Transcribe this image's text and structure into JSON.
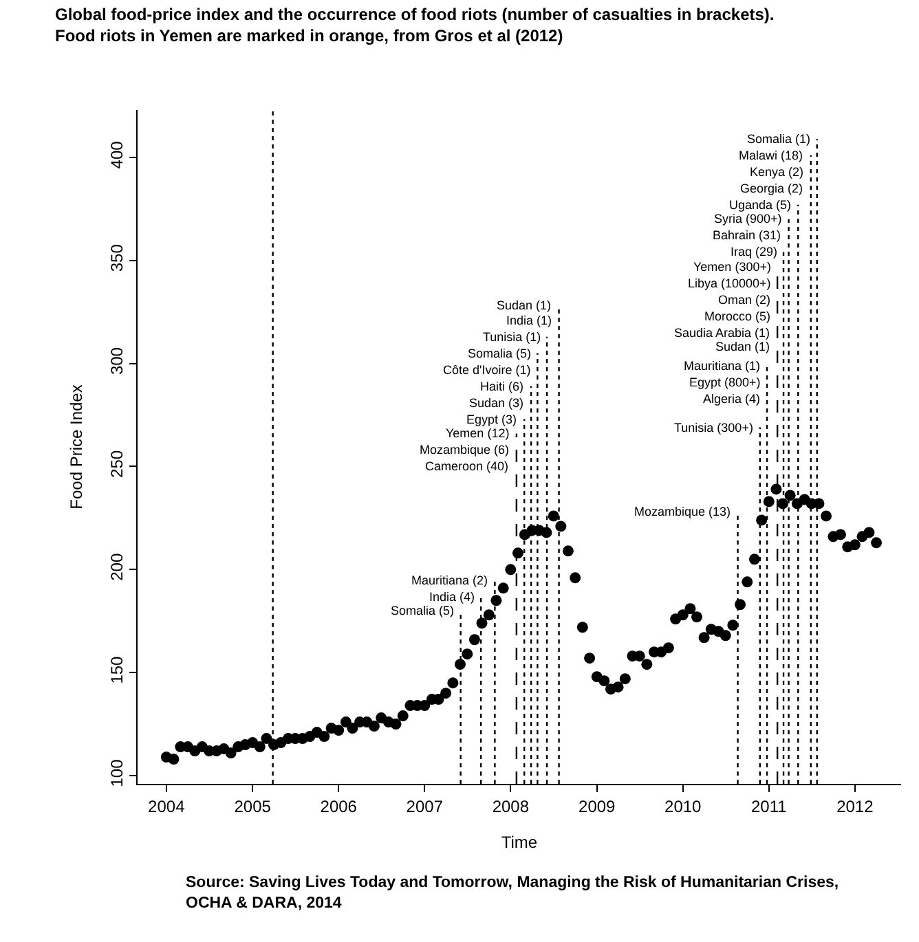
{
  "chart_data": {
    "type": "scatter",
    "title": "Global food-price index and the occurrence of food riots (number of casualties in brackets).\nFood riots in Yemen are marked in orange, from Gros et al (2012)",
    "xlabel": "Time",
    "ylabel": "Food Price Index",
    "x": [
      "2004-01",
      "2004-02",
      "2004-03",
      "2004-04",
      "2004-05",
      "2004-06",
      "2004-07",
      "2004-08",
      "2004-09",
      "2004-10",
      "2004-11",
      "2004-12",
      "2005-01",
      "2005-02",
      "2005-03",
      "2005-04",
      "2005-05",
      "2005-06",
      "2005-07",
      "2005-08",
      "2005-09",
      "2005-10",
      "2005-11",
      "2005-12",
      "2006-01",
      "2006-02",
      "2006-03",
      "2006-04",
      "2006-05",
      "2006-06",
      "2006-07",
      "2006-08",
      "2006-09",
      "2006-10",
      "2006-11",
      "2006-12",
      "2007-01",
      "2007-02",
      "2007-03",
      "2007-04",
      "2007-05",
      "2007-06",
      "2007-07",
      "2007-08",
      "2007-09",
      "2007-10",
      "2007-11",
      "2007-12",
      "2008-01",
      "2008-02",
      "2008-03",
      "2008-04",
      "2008-05",
      "2008-06",
      "2008-07",
      "2008-08",
      "2008-09",
      "2008-10",
      "2008-11",
      "2008-12",
      "2009-01",
      "2009-02",
      "2009-03",
      "2009-04",
      "2009-05",
      "2009-06",
      "2009-07",
      "2009-08",
      "2009-09",
      "2009-10",
      "2009-11",
      "2009-12",
      "2010-01",
      "2010-02",
      "2010-03",
      "2010-04",
      "2010-05",
      "2010-06",
      "2010-07",
      "2010-08",
      "2010-09",
      "2010-10",
      "2010-11",
      "2010-12",
      "2011-01",
      "2011-02",
      "2011-03",
      "2011-04",
      "2011-05",
      "2011-06",
      "2011-07",
      "2011-08",
      "2011-09",
      "2011-10",
      "2011-11",
      "2011-12",
      "2012-01",
      "2012-02",
      "2012-03",
      "2012-04"
    ],
    "series": [
      {
        "color": "#000000",
        "values": [
          109,
          108,
          114,
          114,
          112,
          114,
          112,
          112,
          113,
          111,
          114,
          115,
          116,
          114,
          118,
          115,
          116,
          118,
          118,
          118,
          119,
          121,
          119,
          123,
          122,
          126,
          123,
          126,
          126,
          124,
          128,
          126,
          125,
          129,
          134,
          134,
          134,
          137,
          137,
          140,
          145,
          154,
          159,
          166,
          174,
          178,
          185,
          191,
          200,
          208,
          217,
          219,
          219,
          218,
          226,
          221,
          209,
          196,
          172,
          157,
          148,
          146,
          142,
          143,
          147,
          158,
          158,
          154,
          160,
          160,
          162,
          176,
          178,
          181,
          177,
          167,
          171,
          170,
          168,
          173,
          183,
          194,
          205,
          224,
          233,
          239,
          232,
          236,
          232,
          234,
          232,
          232,
          226,
          216,
          217,
          211,
          212,
          216,
          218,
          213
        ]
      }
    ],
    "marker": "circle",
    "xlim": [
      "2003-09-01",
      "2012-07-15"
    ],
    "xticks": [
      "2004",
      "2005",
      "2006",
      "2007",
      "2008",
      "2009",
      "2010",
      "2011",
      "2012"
    ],
    "ylim": [
      96,
      423
    ],
    "yticks": [
      100,
      150,
      200,
      250,
      300,
      350,
      400
    ],
    "grid": false,
    "ref_lines": [
      {
        "axis": "x",
        "value": "2005-03-28",
        "color": "#000000",
        "line_style": "dotted"
      },
      {
        "axis": "x",
        "value": "2007-06-03",
        "color": "#000000",
        "line_style": "dotted"
      },
      {
        "axis": "x",
        "value": "2007-08-28",
        "color": "#000000",
        "line_style": "dotted"
      },
      {
        "axis": "x",
        "value": "2007-10-26",
        "color": "#000000",
        "line_style": "dotted"
      },
      {
        "axis": "x",
        "value": "2008-01-26",
        "color": "#000000",
        "line_style": "dashed"
      },
      {
        "axis": "x",
        "value": "2008-02-28",
        "color": "#000000",
        "line_style": "dotted"
      },
      {
        "axis": "x",
        "value": "2008-03-28",
        "color": "#000000",
        "line_style": "dotted"
      },
      {
        "axis": "x",
        "value": "2008-04-24",
        "color": "#000000",
        "line_style": "dotted"
      },
      {
        "axis": "x",
        "value": "2008-06-03",
        "color": "#000000",
        "line_style": "dotted"
      },
      {
        "axis": "x",
        "value": "2008-07-24",
        "color": "#000000",
        "line_style": "dotted"
      },
      {
        "axis": "x",
        "value": "2010-08-22",
        "color": "#000000",
        "line_style": "dotted"
      },
      {
        "axis": "x",
        "value": "2010-11-24",
        "color": "#000000",
        "line_style": "dotted"
      },
      {
        "axis": "x",
        "value": "2010-12-24",
        "color": "#000000",
        "line_style": "dotted"
      },
      {
        "axis": "x",
        "value": "2011-02-06",
        "color": "#000000",
        "line_style": "dashed"
      },
      {
        "axis": "x",
        "value": "2011-03-04",
        "color": "#000000",
        "line_style": "dotted"
      },
      {
        "axis": "x",
        "value": "2011-03-26",
        "color": "#000000",
        "line_style": "dotted"
      },
      {
        "axis": "x",
        "value": "2011-05-05",
        "color": "#000000",
        "line_style": "dotted"
      },
      {
        "axis": "x",
        "value": "2011-06-28",
        "color": "#000000",
        "line_style": "dotted"
      },
      {
        "axis": "x",
        "value": "2011-07-24",
        "color": "#000000",
        "line_style": "dotted"
      }
    ],
    "annotations": [
      {
        "text": "Mauritiana (2)",
        "x": "2007-10-26",
        "y": 195
      },
      {
        "text": "India (4)",
        "x": "2007-08-28",
        "y": 187
      },
      {
        "text": "Somalia (5)",
        "x": "2007-06-03",
        "y": 180
      },
      {
        "text": "Cameroon (40)",
        "x": "2008-01-26",
        "y": 250
      },
      {
        "text": "Mozambique (6)",
        "x": "2008-01-26",
        "y": 258
      },
      {
        "text": "Yemen (12)",
        "x": "2008-01-26",
        "y": 266
      },
      {
        "text": "Egypt (3)",
        "x": "2008-02-28",
        "y": 273
      },
      {
        "text": "Sudan (3)",
        "x": "2008-03-28",
        "y": 281
      },
      {
        "text": "Haiti (6)",
        "x": "2008-03-28",
        "y": 289
      },
      {
        "text": "Côte d'Ivoire (1)",
        "x": "2008-04-24",
        "y": 297
      },
      {
        "text": "Somalia (5)",
        "x": "2008-04-24",
        "y": 305
      },
      {
        "text": "Tunisia (1)",
        "x": "2008-06-03",
        "y": 313
      },
      {
        "text": "India (1)",
        "x": "2008-07-24",
        "y": 321
      },
      {
        "text": "Sudan (1)",
        "x": "2008-07-24",
        "y": 328
      },
      {
        "text": "Mozambique (13)",
        "x": "2010-08-22",
        "y": 228
      },
      {
        "text": "Tunisia (300+)",
        "x": "2010-11-24",
        "y": 269
      },
      {
        "text": "Algeria (4)",
        "x": "2010-12-24",
        "y": 283
      },
      {
        "text": "Egypt (800+)",
        "x": "2010-12-24",
        "y": 291
      },
      {
        "text": "Mauritiana (1)",
        "x": "2010-12-24",
        "y": 299
      },
      {
        "text": "Sudan (1)",
        "x": "2011-02-06",
        "y": 308
      },
      {
        "text": "Saudia Arabia (1)",
        "x": "2011-02-06",
        "y": 315
      },
      {
        "text": "Morocco (5)",
        "x": "2011-02-06",
        "y": 323
      },
      {
        "text": "Oman (2)",
        "x": "2011-02-06",
        "y": 331
      },
      {
        "text": "Libya (10000+)",
        "x": "2011-02-06",
        "y": 339
      },
      {
        "text": "Yemen (300+)",
        "x": "2011-02-06",
        "y": 347
      },
      {
        "text": "Iraq (29)",
        "x": "2011-03-04",
        "y": 354
      },
      {
        "text": "Bahrain (31)",
        "x": "2011-03-26",
        "y": 362
      },
      {
        "text": "Syria (900+)",
        "x": "2011-03-26",
        "y": 370
      },
      {
        "text": "Uganda (5)",
        "x": "2011-05-05",
        "y": 377
      },
      {
        "text": "Georgia (2)",
        "x": "2011-06-28",
        "y": 385
      },
      {
        "text": "Kenya (2)",
        "x": "2011-06-28",
        "y": 393
      },
      {
        "text": "Malawi (18)",
        "x": "2011-06-28",
        "y": 401
      },
      {
        "text": "Somalia (1)",
        "x": "2011-07-24",
        "y": 409
      },
      "Source: Saving Lives Today and Tomorrow, Managing the Risk of Humanitarian Crises,\nOCHA & DARA, 2014"
    ]
  }
}
